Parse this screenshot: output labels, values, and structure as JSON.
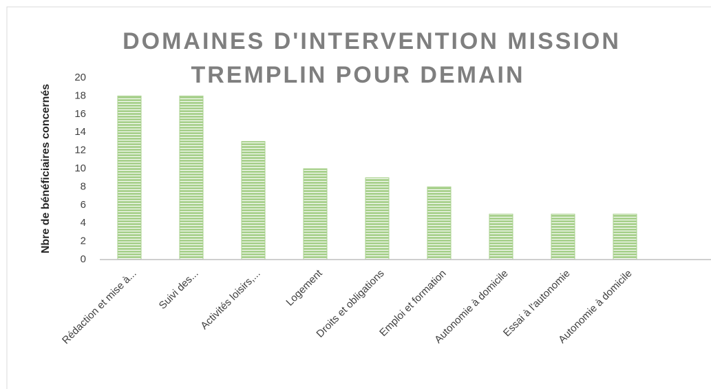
{
  "chart_data": {
    "type": "bar",
    "title": [
      "DOMAINES D'INTERVENTION MISSION",
      "TREMPLIN POUR DEMAIN"
    ],
    "y_label": "Nbre de bénéficiaires concernés",
    "categories": [
      "Rédaction et mise à...",
      "Suivi des...",
      "Activités loisirs,...",
      "Logement",
      "Droits et obligations",
      "Emploi et formation",
      "Autonomie à domicile",
      "Essai à l'autonomie",
      "Autonomie à domicile"
    ],
    "values": [
      18,
      18,
      13,
      10,
      9,
      8,
      5,
      5,
      5
    ],
    "color": "#a9d18e",
    "ylim": [
      0,
      20
    ],
    "yticks": [
      0,
      2,
      4,
      6,
      8,
      10,
      12,
      14,
      16,
      18,
      20
    ],
    "grid": false
  }
}
